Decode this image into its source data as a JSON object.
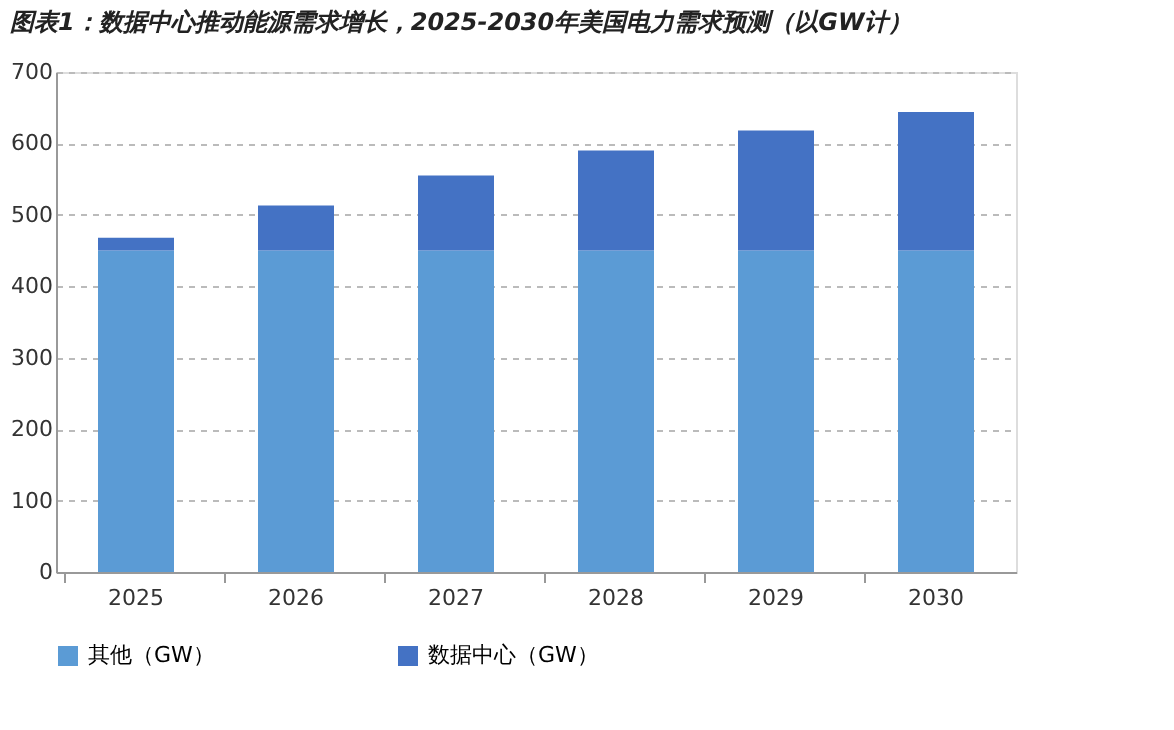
{
  "chart_data": {
    "type": "bar",
    "title": "图表1：数据中心推动能源需求增长，2025-2030年美国电力需求预测（以GW计）",
    "categories": [
      "2025",
      "2026",
      "2027",
      "2028",
      "2029",
      "2030"
    ],
    "stacked": true,
    "series": [
      {
        "name": "其他（GW）",
        "color": "#5b9bd5",
        "values": [
          450,
          450,
          450,
          450,
          450,
          450
        ]
      },
      {
        "name": "数据中心（GW）",
        "color": "#4472c4",
        "values": [
          18,
          63,
          105,
          140,
          168,
          194
        ]
      }
    ],
    "ylim": [
      0,
      700
    ],
    "yticks": [
      0,
      100,
      200,
      300,
      400,
      500,
      600,
      700
    ],
    "grid": "y",
    "legend": "bottom"
  }
}
